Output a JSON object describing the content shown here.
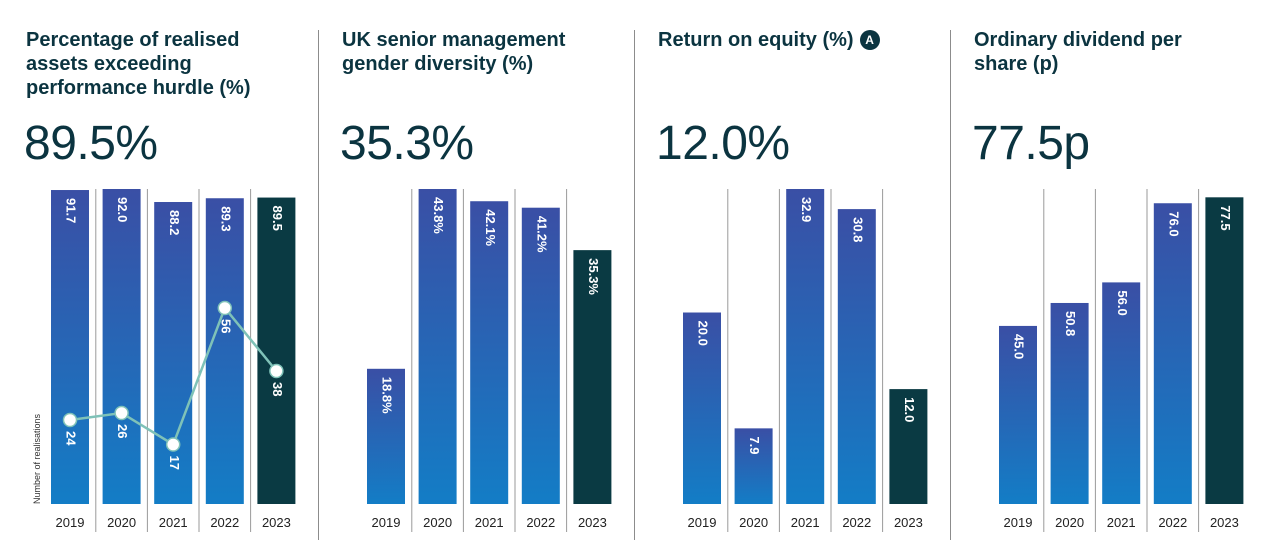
{
  "colors": {
    "bar_top": "#3a4fa5",
    "bar_bottom": "#137dc6",
    "highlight": "#0a3a43",
    "line": "#7fc2b8",
    "text_dark": "#0b3440"
  },
  "chart_data": [
    {
      "type": "bar",
      "title": "Percentage of realised\nassets exceeding\nperformance hurdle (%)",
      "headline": "89.5%",
      "categories": [
        "2019",
        "2020",
        "2021",
        "2022",
        "2023"
      ],
      "values": [
        91.7,
        92.0,
        88.2,
        89.3,
        89.5
      ],
      "labels": [
        "91.7",
        "92.0",
        "88.2",
        "89.3",
        "89.5"
      ],
      "highlight_index": 4,
      "ylim": [
        0,
        92
      ],
      "secondary_line": {
        "name": "Number of realisations",
        "values": [
          24,
          26,
          17,
          56,
          38
        ],
        "labels": [
          "24",
          "26",
          "17",
          "56",
          "38"
        ],
        "ylim": [
          0,
          90
        ]
      }
    },
    {
      "type": "bar",
      "title": "UK senior management\ngender diversity (%)",
      "headline": "35.3%",
      "categories": [
        "2019",
        "2020",
        "2021",
        "2022",
        "2023"
      ],
      "values": [
        18.8,
        43.8,
        42.1,
        41.2,
        35.3
      ],
      "labels": [
        "18.8%",
        "43.8%",
        "42.1%",
        "41.2%",
        "35.3%"
      ],
      "highlight_index": 4,
      "ylim": [
        0,
        43.8
      ]
    },
    {
      "type": "bar",
      "title": "Return on equity (%)",
      "badge": "A",
      "headline": "12.0%",
      "categories": [
        "2019",
        "2020",
        "2021",
        "2022",
        "2023"
      ],
      "values": [
        20.0,
        7.9,
        32.9,
        30.8,
        12.0
      ],
      "labels": [
        "20.0",
        "7.9",
        "32.9",
        "30.8",
        "12.0"
      ],
      "highlight_index": 4,
      "ylim": [
        0,
        32.9
      ]
    },
    {
      "type": "bar",
      "title": "Ordinary dividend per\nshare (p)",
      "headline": "77.5p",
      "categories": [
        "2019",
        "2020",
        "2021",
        "2022",
        "2023"
      ],
      "values": [
        45.0,
        50.8,
        56.0,
        76.0,
        77.5
      ],
      "labels": [
        "45.0",
        "50.8",
        "56.0",
        "76.0",
        "77.5"
      ],
      "highlight_index": 4,
      "ylim": [
        0,
        79.6
      ]
    }
  ]
}
